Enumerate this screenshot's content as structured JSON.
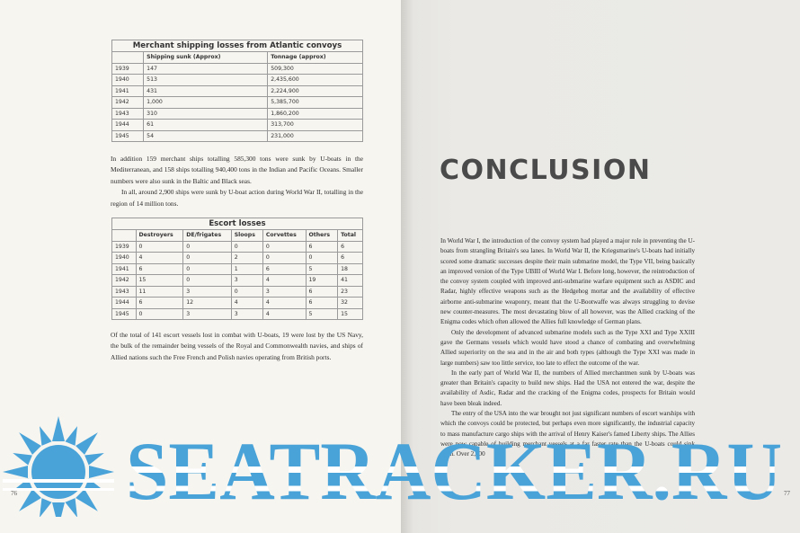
{
  "left_page": {
    "tables": [
      {
        "title": "Merchant shipping losses from Atlantic convoys",
        "headers": [
          "Shipping sunk (Approx)",
          "Tonnage (approx)"
        ],
        "rows": [
          [
            "1939",
            "147",
            "509,300"
          ],
          [
            "1940",
            "513",
            "2,435,600"
          ],
          [
            "1941",
            "431",
            "2,224,900"
          ],
          [
            "1942",
            "1,000",
            "5,385,700"
          ],
          [
            "1943",
            "310",
            "1,860,200"
          ],
          [
            "1944",
            "61",
            "313,700"
          ],
          [
            "1945",
            "54",
            "231,000"
          ]
        ]
      },
      {
        "title": "Escort losses",
        "headers": [
          "Destroyers",
          "DE/frigates",
          "Sloops",
          "Corvettes",
          "Others",
          "Total"
        ],
        "rows": [
          [
            "1939",
            "0",
            "0",
            "0",
            "0",
            "6",
            "6"
          ],
          [
            "1940",
            "4",
            "0",
            "2",
            "0",
            "0",
            "6"
          ],
          [
            "1941",
            "6",
            "0",
            "1",
            "6",
            "5",
            "18"
          ],
          [
            "1942",
            "15",
            "0",
            "3",
            "4",
            "19",
            "41"
          ],
          [
            "1943",
            "11",
            "3",
            "0",
            "3",
            "6",
            "23"
          ],
          [
            "1944",
            "6",
            "12",
            "4",
            "4",
            "6",
            "32"
          ],
          [
            "1945",
            "0",
            "3",
            "3",
            "4",
            "5",
            "15"
          ]
        ]
      }
    ],
    "paragraphs_1": [
      "In addition 159 merchant ships totalling 585,300 tons were sunk by U-boats in the Mediterranean, and 158 ships totalling 940,400 tons in the Indian and Pacific Oceans. Smaller numbers were also sunk in the Baltic and Black seas.",
      "In all, around 2,900 ships were sunk by U-boat action during World War II, totalling in the region of 14 million tons."
    ],
    "paragraphs_2": [
      "Of the total of 141 escort vessels lost in combat with U-boats, 19 were lost by the US Navy, the bulk of the remainder being vessels of the Royal and Commonwealth navies, and ships of Allied nations such the Free French and Polish navies operating from British ports."
    ],
    "page_number": "76"
  },
  "right_page": {
    "heading": "CONCLUSION",
    "paragraphs": [
      "In World War I, the introduction of the convoy system had played a major role in preventing the U-boats from strangling Britain's sea lanes. In World War II, the Kriegsmarine's U-boats had initially scored some dramatic successes despite their main submarine model, the Type VII, being basically an improved version of the Type UBIII of World War I. Before long, however, the reintroduction of the convoy system coupled with improved anti-submarine warfare equipment such as ASDIC and Radar, highly effective weapons such as the Hedgehog mortar and the availability of effective airborne anti-submarine weaponry, meant that the U-Bootwaffe was always struggling to devise new counter-measures. The most devastating blow of all however, was the Allied cracking of the Enigma codes which often allowed the Allies full knowledge of German plans.",
      "Only the development of advanced submarine models such as the Type XXI and Type XXIII gave the Germans vessels which would have stood a chance of combating and overwhelming Allied superiority on the sea and in the air and both types (although the Type XXI was made in large numbers) saw too little service, too late to effect the outcome of the war.",
      "In the early part of World War II, the numbers of Allied merchantmen sunk by U-boats was greater than Britain's capacity to build new ships. Had the USA not entered the war, despite the availability of Asdic, Radar and the cracking of the Enigma codes, prospects for Britain would have been bleak indeed.",
      "The entry of the USA into the war brought not just significant numbers of escort warships with which the convoys could be protected, but perhaps even more significantly, the industrial capacity to mass manufacture cargo ships with the arrival of Henry Kaiser's famed Liberty ships. The Allies were now capable of building merchant vessels at a far faster rate than the U-boats could sink them. Over 2,700"
    ],
    "page_number": "77"
  },
  "watermark": "SEATRACKER.RU"
}
